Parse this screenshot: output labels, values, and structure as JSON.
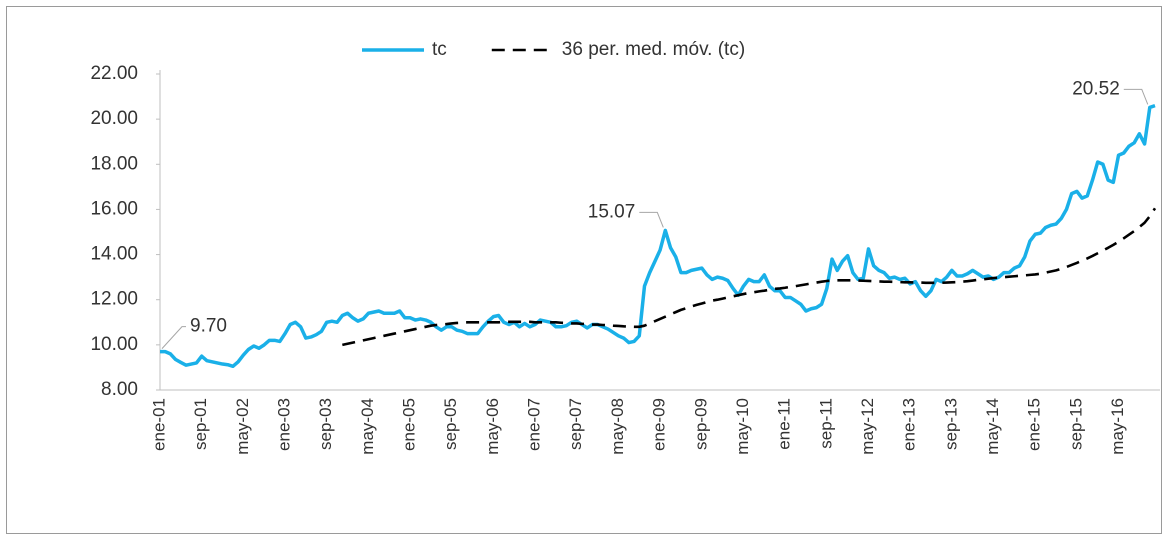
{
  "chart_data": {
    "type": "line",
    "categories": [
      "ene-01",
      null,
      null,
      null,
      null,
      null,
      null,
      null,
      "sep-01",
      null,
      null,
      null,
      null,
      null,
      null,
      null,
      "may-02",
      null,
      null,
      null,
      null,
      null,
      null,
      null,
      "ene-03",
      null,
      null,
      null,
      null,
      null,
      null,
      null,
      "sep-03",
      null,
      null,
      null,
      null,
      null,
      null,
      null,
      "may-04",
      null,
      null,
      null,
      null,
      null,
      null,
      null,
      "ene-05",
      null,
      null,
      null,
      null,
      null,
      null,
      null,
      "sep-05",
      null,
      null,
      null,
      null,
      null,
      null,
      null,
      "may-06",
      null,
      null,
      null,
      null,
      null,
      null,
      null,
      "ene-07",
      null,
      null,
      null,
      null,
      null,
      null,
      null,
      "sep-07",
      null,
      null,
      null,
      null,
      null,
      null,
      null,
      "may-08",
      null,
      null,
      null,
      null,
      null,
      null,
      null,
      "ene-09",
      null,
      null,
      null,
      null,
      null,
      null,
      null,
      "sep-09",
      null,
      null,
      null,
      null,
      null,
      null,
      null,
      "may-10",
      null,
      null,
      null,
      null,
      null,
      null,
      null,
      "ene-11",
      null,
      null,
      null,
      null,
      null,
      null,
      null,
      "sep-11",
      null,
      null,
      null,
      null,
      null,
      null,
      null,
      "may-12",
      null,
      null,
      null,
      null,
      null,
      null,
      null,
      "ene-13",
      null,
      null,
      null,
      null,
      null,
      null,
      null,
      "sep-13",
      null,
      null,
      null,
      null,
      null,
      null,
      null,
      "may-14",
      null,
      null,
      null,
      null,
      null,
      null,
      null,
      "ene-15",
      null,
      null,
      null,
      null,
      null,
      null,
      null,
      "sep-15",
      null,
      null,
      null,
      null,
      null,
      null,
      null,
      "may-16",
      null,
      null,
      null,
      null,
      null,
      null,
      null
    ],
    "series": [
      {
        "name": "tc",
        "color": "#1ab0e8",
        "values": [
          9.7,
          9.7,
          9.6,
          9.35,
          9.22,
          9.1,
          9.15,
          9.2,
          9.5,
          9.3,
          9.25,
          9.2,
          9.15,
          9.12,
          9.05,
          9.25,
          9.55,
          9.8,
          9.95,
          9.85,
          10.0,
          10.2,
          10.2,
          10.15,
          10.5,
          10.9,
          11.0,
          10.8,
          10.3,
          10.35,
          10.45,
          10.6,
          11.0,
          11.05,
          11.0,
          11.3,
          11.4,
          11.2,
          11.05,
          11.15,
          11.4,
          11.45,
          11.5,
          11.4,
          11.4,
          11.4,
          11.5,
          11.2,
          11.2,
          11.1,
          11.15,
          11.1,
          11.0,
          10.8,
          10.65,
          10.8,
          10.8,
          10.65,
          10.6,
          10.5,
          10.5,
          10.5,
          10.8,
          11.05,
          11.25,
          11.3,
          11.0,
          10.9,
          11.0,
          10.8,
          10.95,
          10.8,
          10.9,
          11.1,
          11.05,
          11.0,
          10.8,
          10.8,
          10.85,
          11.0,
          11.05,
          10.9,
          10.75,
          10.9,
          10.9,
          10.8,
          10.7,
          10.55,
          10.4,
          10.3,
          10.1,
          10.15,
          10.4,
          12.6,
          13.2,
          13.7,
          14.2,
          15.07,
          14.3,
          13.9,
          13.2,
          13.2,
          13.3,
          13.35,
          13.4,
          13.1,
          12.9,
          13.0,
          12.95,
          12.85,
          12.5,
          12.2,
          12.6,
          12.9,
          12.8,
          12.8,
          13.1,
          12.6,
          12.4,
          12.4,
          12.1,
          12.1,
          11.95,
          11.8,
          11.5,
          11.6,
          11.65,
          11.8,
          12.5,
          13.8,
          13.3,
          13.7,
          13.95,
          13.2,
          12.9,
          12.95,
          14.25,
          13.5,
          13.3,
          13.2,
          12.95,
          13.0,
          12.9,
          12.95,
          12.7,
          12.8,
          12.4,
          12.15,
          12.4,
          12.9,
          12.8,
          13.0,
          13.3,
          13.05,
          13.05,
          13.15,
          13.3,
          13.15,
          13.0,
          13.05,
          12.9,
          13.0,
          13.2,
          13.2,
          13.4,
          13.5,
          13.9,
          14.6,
          14.9,
          14.95,
          15.2,
          15.3,
          15.35,
          15.6,
          16.0,
          16.7,
          16.8,
          16.5,
          16.6,
          17.3,
          18.1,
          18.0,
          17.3,
          17.2,
          18.4,
          18.5,
          18.8,
          18.95,
          19.35,
          18.9,
          20.52,
          20.6
        ],
        "value_labels": [
          "9.70",
          null,
          null,
          null,
          null,
          null,
          null,
          null,
          null,
          null,
          null,
          null,
          null,
          null,
          null,
          null,
          null,
          null,
          null,
          null,
          null,
          null,
          null,
          null,
          null,
          null,
          null,
          null,
          null,
          null,
          null,
          null,
          null,
          null,
          null,
          null,
          null,
          null,
          null,
          null,
          null,
          null,
          null,
          null,
          null,
          null,
          null,
          null,
          null,
          null,
          null,
          null,
          null,
          null,
          null,
          null,
          null,
          null,
          null,
          null,
          null,
          null,
          null,
          null,
          null,
          null,
          null,
          null,
          null,
          null,
          null,
          null,
          null,
          null,
          null,
          null,
          null,
          null,
          null,
          null,
          null,
          null,
          null,
          null,
          null,
          null,
          null,
          null,
          null,
          null,
          null,
          null,
          null,
          null,
          null,
          null,
          null,
          "15.07",
          null,
          null,
          null,
          null,
          null,
          null,
          null,
          null,
          null,
          null,
          null,
          null,
          null,
          null,
          null,
          null,
          null,
          null,
          null,
          null,
          null,
          null,
          null,
          null,
          null,
          null,
          null,
          null,
          null,
          null,
          null,
          null,
          null,
          null,
          null,
          null,
          null,
          null,
          null,
          null,
          null,
          null,
          null,
          null,
          null,
          null,
          null,
          null,
          null,
          null,
          null,
          null,
          null,
          null,
          null,
          null,
          null,
          null,
          null,
          null,
          null,
          null,
          null,
          null,
          null,
          null,
          null,
          null,
          null,
          null,
          null,
          null,
          null,
          null,
          null,
          null,
          null,
          null,
          null,
          null,
          null,
          null,
          null,
          null,
          null,
          null,
          null,
          null,
          null,
          null,
          null,
          null,
          "20.52",
          null
        ]
      },
      {
        "name": "36 per. med. móv. (tc)",
        "color": "#000000",
        "dashed": true,
        "values": [
          null,
          null,
          null,
          null,
          null,
          null,
          null,
          null,
          null,
          null,
          null,
          null,
          null,
          null,
          null,
          null,
          null,
          null,
          null,
          null,
          null,
          null,
          null,
          null,
          null,
          null,
          null,
          null,
          null,
          null,
          null,
          null,
          null,
          null,
          null,
          10.0,
          10.05,
          10.1,
          10.15,
          10.2,
          10.25,
          10.3,
          10.35,
          10.4,
          10.45,
          10.5,
          10.55,
          10.6,
          10.65,
          10.7,
          10.75,
          10.8,
          10.85,
          10.88,
          10.9,
          10.92,
          10.95,
          10.97,
          10.98,
          11.0,
          11.0,
          11.0,
          11.0,
          11.0,
          11.0,
          11.0,
          11.02,
          11.02,
          11.02,
          11.02,
          11.02,
          11.02,
          11.0,
          11.0,
          11.0,
          11.0,
          11.0,
          10.98,
          10.97,
          10.95,
          10.95,
          10.93,
          10.92,
          10.9,
          10.9,
          10.88,
          10.87,
          10.85,
          10.84,
          10.82,
          10.81,
          10.8,
          10.8,
          10.85,
          10.95,
          11.05,
          11.15,
          11.25,
          11.35,
          11.45,
          11.55,
          11.62,
          11.7,
          11.77,
          11.83,
          11.9,
          11.96,
          12.0,
          12.05,
          12.1,
          12.15,
          12.2,
          12.25,
          12.3,
          12.33,
          12.37,
          12.4,
          12.44,
          12.48,
          12.5,
          12.53,
          12.57,
          12.6,
          12.64,
          12.68,
          12.72,
          12.76,
          12.8,
          12.83,
          12.85,
          12.86,
          12.86,
          12.86,
          12.86,
          12.85,
          12.84,
          12.83,
          12.82,
          12.81,
          12.8,
          12.8,
          12.79,
          12.78,
          12.77,
          12.77,
          12.76,
          12.76,
          12.75,
          12.75,
          12.75,
          12.75,
          12.76,
          12.77,
          12.78,
          12.8,
          12.82,
          12.85,
          12.88,
          12.9,
          12.93,
          12.96,
          12.98,
          13.0,
          13.02,
          13.04,
          13.06,
          13.08,
          13.1,
          13.12,
          13.15,
          13.2,
          13.25,
          13.3,
          13.37,
          13.45,
          13.54,
          13.63,
          13.73,
          13.83,
          13.94,
          14.06,
          14.18,
          14.3,
          14.43,
          14.57,
          14.72,
          14.88,
          15.04,
          15.22,
          15.41,
          15.7,
          16.05
        ]
      }
    ],
    "ylim": [
      8,
      22
    ],
    "yticks": [
      {
        "value": 8,
        "label": "8.00"
      },
      {
        "value": 10,
        "label": "10.00"
      },
      {
        "value": 12,
        "label": "12.00"
      },
      {
        "value": 14,
        "label": "14.00"
      },
      {
        "value": 16,
        "label": "16.00"
      },
      {
        "value": 18,
        "label": "18.00"
      },
      {
        "value": 20,
        "label": "20.00"
      },
      {
        "value": 22,
        "label": "22.00"
      }
    ],
    "grid": false,
    "legend": "top"
  }
}
